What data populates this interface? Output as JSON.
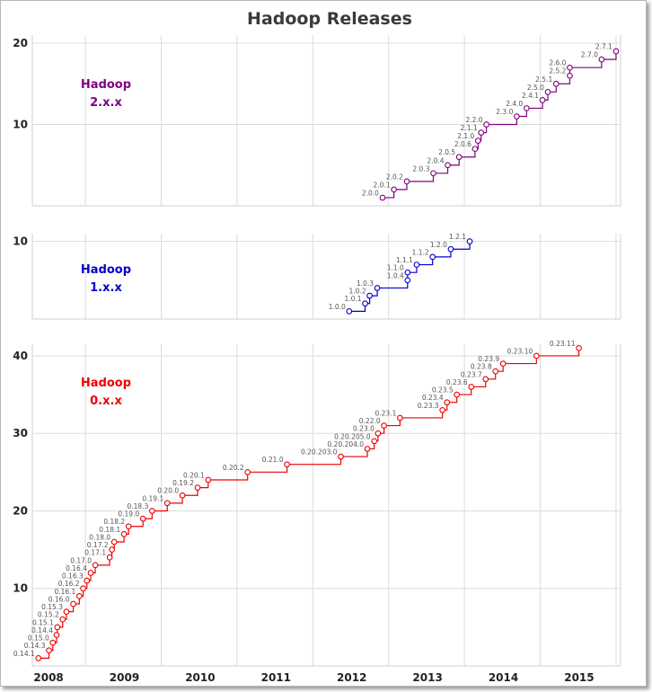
{
  "chart_data": {
    "type": "line",
    "title": "Hadoop Releases",
    "x_ticks": [
      "2008",
      "2009",
      "2010",
      "2011",
      "2012",
      "2013",
      "2014",
      "2015"
    ],
    "panels": [
      {
        "name": "Hadoop 2.x.x",
        "label_lines": [
          "Hadoop",
          "2.x.x"
        ],
        "color": "#800080",
        "y_ticks": [
          10,
          20
        ],
        "ylim": [
          0,
          20
        ],
        "points": [
          {
            "label": "2.0.0",
            "x": 2011.92,
            "y": 1
          },
          {
            "label": "2.0.1",
            "x": 2012.07,
            "y": 2
          },
          {
            "label": "2.0.2",
            "x": 2012.24,
            "y": 3
          },
          {
            "label": "2.0.3",
            "x": 2012.59,
            "y": 4
          },
          {
            "label": "2.0.4",
            "x": 2012.78,
            "y": 5
          },
          {
            "label": "2.0.5",
            "x": 2012.93,
            "y": 6
          },
          {
            "label": "2.0.6",
            "x": 2013.14,
            "y": 7
          },
          {
            "label": "2.1.0",
            "x": 2013.18,
            "y": 8
          },
          {
            "label": "2.1.1",
            "x": 2013.22,
            "y": 9
          },
          {
            "label": "2.2.0",
            "x": 2013.29,
            "y": 10
          },
          {
            "label": "2.3.0",
            "x": 2013.69,
            "y": 11
          },
          {
            "label": "2.4.0",
            "x": 2013.82,
            "y": 12
          },
          {
            "label": "2.4.1",
            "x": 2014.03,
            "y": 13
          },
          {
            "label": "2.5.0",
            "x": 2014.1,
            "y": 14
          },
          {
            "label": "2.5.1",
            "x": 2014.21,
            "y": 15
          },
          {
            "label": "2.5.2",
            "x": 2014.39,
            "y": 16
          },
          {
            "label": "2.6.0",
            "x": 2014.39,
            "y": 17
          },
          {
            "label": "2.7.0",
            "x": 2014.81,
            "y": 18
          },
          {
            "label": "2.7.1",
            "x": 2015.0,
            "y": 19
          }
        ]
      },
      {
        "name": "Hadoop 1.x.x",
        "label_lines": [
          "Hadoop",
          "1.x.x"
        ],
        "color": "#0000cc",
        "y_ticks": [
          10
        ],
        "ylim": [
          0,
          10
        ],
        "points": [
          {
            "label": "1.0.0",
            "x": 2011.48,
            "y": 1
          },
          {
            "label": "1.0.1",
            "x": 2011.69,
            "y": 2
          },
          {
            "label": "1.0.2",
            "x": 2011.75,
            "y": 3
          },
          {
            "label": "1.0.3",
            "x": 2011.85,
            "y": 4
          },
          {
            "label": "1.0.4",
            "x": 2012.25,
            "y": 5
          },
          {
            "label": "1.1.0",
            "x": 2012.25,
            "y": 6
          },
          {
            "label": "1.1.1",
            "x": 2012.37,
            "y": 7
          },
          {
            "label": "1.1.2",
            "x": 2012.58,
            "y": 8
          },
          {
            "label": "1.2.0",
            "x": 2012.82,
            "y": 9
          },
          {
            "label": "1.2.1",
            "x": 2013.07,
            "y": 10
          }
        ]
      },
      {
        "name": "Hadoop 0.x.x",
        "label_lines": [
          "Hadoop",
          "0.x.x"
        ],
        "color": "#ee0000",
        "y_ticks": [
          10,
          20,
          30,
          40
        ],
        "ylim": [
          0,
          40
        ],
        "points": [
          {
            "label": "0.14.1",
            "x": 2007.38,
            "y": 1
          },
          {
            "label": "0.14.3",
            "x": 2007.52,
            "y": 2
          },
          {
            "label": "0.15.0",
            "x": 2007.57,
            "y": 3
          },
          {
            "label": "0.14.4",
            "x": 2007.62,
            "y": 4
          },
          {
            "label": "0.15.1",
            "x": 2007.63,
            "y": 5
          },
          {
            "label": "0.15.2",
            "x": 2007.7,
            "y": 6
          },
          {
            "label": "0.15.3",
            "x": 2007.75,
            "y": 7
          },
          {
            "label": "0.16.0",
            "x": 2007.84,
            "y": 8
          },
          {
            "label": "0.16.1",
            "x": 2007.92,
            "y": 9
          },
          {
            "label": "0.16.2",
            "x": 2007.97,
            "y": 10
          },
          {
            "label": "0.16.3",
            "x": 2008.02,
            "y": 11
          },
          {
            "label": "0.16.4",
            "x": 2008.07,
            "y": 12
          },
          {
            "label": "0.17.0",
            "x": 2008.13,
            "y": 13
          },
          {
            "label": "0.17.1",
            "x": 2008.32,
            "y": 14
          },
          {
            "label": "0.17.2",
            "x": 2008.35,
            "y": 15
          },
          {
            "label": "0.18.0",
            "x": 2008.38,
            "y": 16
          },
          {
            "label": "0.18.1",
            "x": 2008.51,
            "y": 17
          },
          {
            "label": "0.18.2",
            "x": 2008.57,
            "y": 18
          },
          {
            "label": "0.19.0",
            "x": 2008.76,
            "y": 19
          },
          {
            "label": "0.18.3",
            "x": 2008.88,
            "y": 20
          },
          {
            "label": "0.19.1",
            "x": 2009.08,
            "y": 21
          },
          {
            "label": "0.20.0",
            "x": 2009.28,
            "y": 22
          },
          {
            "label": "0.19.2",
            "x": 2009.48,
            "y": 23
          },
          {
            "label": "0.20.1",
            "x": 2009.62,
            "y": 24
          },
          {
            "label": "0.20.2",
            "x": 2010.14,
            "y": 25
          },
          {
            "label": "0.21.0",
            "x": 2010.66,
            "y": 26
          },
          {
            "label": "0.20.203.0",
            "x": 2011.37,
            "y": 27
          },
          {
            "label": "0.20.204.0",
            "x": 2011.72,
            "y": 28
          },
          {
            "label": "0.20.205.0",
            "x": 2011.81,
            "y": 29
          },
          {
            "label": "0.23.0",
            "x": 2011.86,
            "y": 30
          },
          {
            "label": "0.22.0",
            "x": 2011.94,
            "y": 31
          },
          {
            "label": "0.23.1",
            "x": 2012.15,
            "y": 32
          },
          {
            "label": "0.23.3",
            "x": 2012.71,
            "y": 33
          },
          {
            "label": "0.23.4",
            "x": 2012.77,
            "y": 34
          },
          {
            "label": "0.23.5",
            "x": 2012.9,
            "y": 35
          },
          {
            "label": "0.23.6",
            "x": 2013.09,
            "y": 36
          },
          {
            "label": "0.23.7",
            "x": 2013.28,
            "y": 37
          },
          {
            "label": "0.23.8",
            "x": 2013.41,
            "y": 38
          },
          {
            "label": "0.23.9",
            "x": 2013.51,
            "y": 39
          },
          {
            "label": "0.23.10",
            "x": 2013.95,
            "y": 40
          },
          {
            "label": "0.23.11",
            "x": 2014.51,
            "y": 41
          }
        ]
      }
    ]
  }
}
